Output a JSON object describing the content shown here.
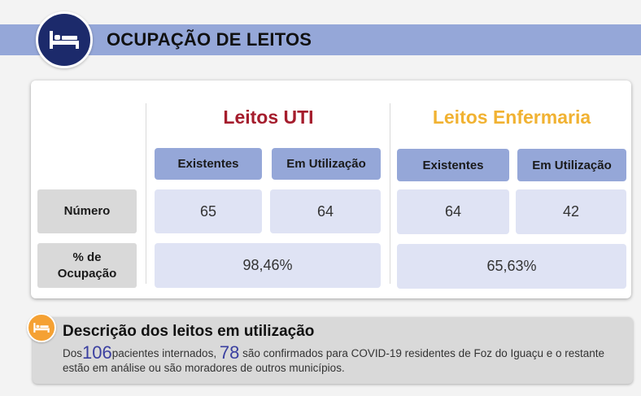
{
  "header": {
    "title": "OCUPAÇÃO DE LEITOS",
    "icon": "bed-icon",
    "band_color": "#95a7d8",
    "badge_color": "#1c2a6b"
  },
  "table": {
    "rows": {
      "numero": "Número",
      "ocupacao": "% de\nOcupação"
    },
    "uti": {
      "title": "Leitos UTI",
      "title_color": "#a51d2d",
      "col_existentes": "Existentes",
      "col_utilizacao": "Em Utilização",
      "existentes": "65",
      "utilizacao": "64",
      "ocupacao": "98,46%"
    },
    "enfermaria": {
      "title": "Leitos Enfermaria",
      "title_color": "#f1b232",
      "col_existentes": "Existentes",
      "col_utilizacao": "Em Utilização",
      "existentes": "64",
      "utilizacao": "42",
      "ocupacao": "65,63%"
    }
  },
  "description": {
    "icon": "bed-icon",
    "badge_color": "#f5a133",
    "title": "Descrição dos leitos em utilização",
    "text_prefix": "Dos",
    "internados": "106",
    "text_mid": "pacientes internados, ",
    "confirmados": "78",
    "text_suffix": " são confirmados para COVID-19 residentes de Foz do Iguaçu e o restante estão em análise ou são moradores de outros municípios."
  }
}
